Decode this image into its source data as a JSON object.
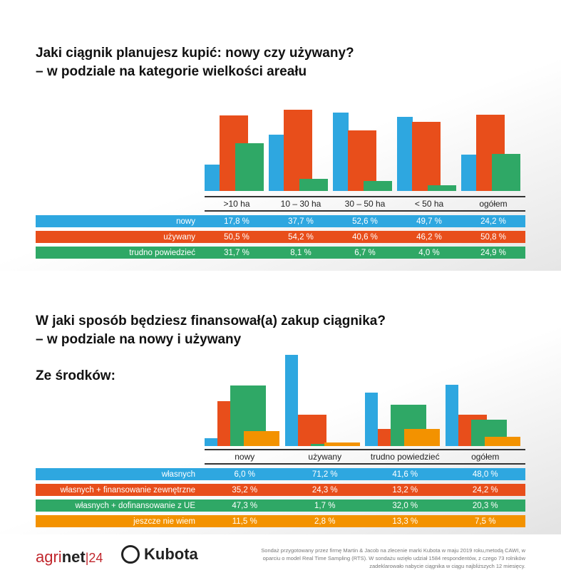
{
  "colors": {
    "blue": "#2ea7e0",
    "red": "#e84e1b",
    "green": "#2fa866",
    "orange": "#f39200"
  },
  "chart_data": [
    {
      "type": "bar",
      "title": "Jaki ciągnik planujesz kupić: nowy czy używany?",
      "subtitle": "– w podziale na kategorie wielkości areału",
      "categories": [
        ">10 ha",
        "10 – 30 ha",
        "30 – 50 ha",
        "< 50 ha",
        "ogółem"
      ],
      "series": [
        {
          "name": "nowy",
          "color": "blue",
          "values": [
            17.8,
            37.7,
            52.6,
            49.7,
            24.2
          ],
          "labels": [
            "17,8 %",
            "37,7 %",
            "52,6 %",
            "49,7 %",
            "24,2 %"
          ]
        },
        {
          "name": "używany",
          "color": "red",
          "values": [
            50.5,
            54.2,
            40.6,
            46.2,
            50.8
          ],
          "labels": [
            "50,5 %",
            "54,2 %",
            "40,6 %",
            "46,2 %",
            "50,8 %"
          ]
        },
        {
          "name": "trudno powiedzieć",
          "color": "green",
          "values": [
            31.7,
            8.1,
            6.7,
            4.0,
            24.9
          ],
          "labels": [
            "31,7 %",
            "8,1 %",
            "6,7 %",
            "4,0 %",
            "24,9 %"
          ]
        }
      ],
      "ylim": [
        0,
        60
      ]
    },
    {
      "type": "bar",
      "title": "W jaki sposób będziesz finansował(a) zakup ciągnika?",
      "subtitle": "– w podziale na nowy i używany",
      "section_label": "Ze środków:",
      "categories": [
        "nowy",
        "używany",
        "trudno powiedzieć",
        "ogółem"
      ],
      "series": [
        {
          "name": "własnych",
          "color": "blue",
          "values": [
            6.0,
            71.2,
            41.6,
            48.0
          ],
          "labels": [
            "6,0 %",
            "71,2 %",
            "41,6 %",
            "48,0 %"
          ]
        },
        {
          "name": "własnych + finansowanie zewnętrzne",
          "color": "red",
          "values": [
            35.2,
            24.3,
            13.2,
            24.2
          ],
          "labels": [
            "35,2 %",
            "24,3 %",
            "13,2 %",
            "24,2 %"
          ]
        },
        {
          "name": "własnych + dofinansowanie z UE",
          "color": "green",
          "values": [
            47.3,
            1.7,
            32.0,
            20.3
          ],
          "labels": [
            "47,3 %",
            "1,7 %",
            "32,0 %",
            "20,3 %"
          ]
        },
        {
          "name": "jeszcze nie wiem",
          "color": "orange",
          "values": [
            11.5,
            2.8,
            13.3,
            7.5
          ],
          "labels": [
            "11,5 %",
            "2,8 %",
            "13,3 %",
            "7,5 %"
          ]
        }
      ],
      "ylim": [
        0,
        75
      ]
    }
  ],
  "footer": {
    "logo1": "agrinet|24",
    "logo2": "Kubota",
    "note": "Sondaż przygotowany przez firmę Martin & Jacob na zlecenie marki Kubota w maju 2019 roku,metodą CAWI, w oparciu o model Real Time Sampling (RTS). W sondażu wzięło udział 1584 respondentów, z czego 73 rolników zadeklarowało nabycie ciągnika w ciągu najbliższych 12 miesięcy."
  }
}
